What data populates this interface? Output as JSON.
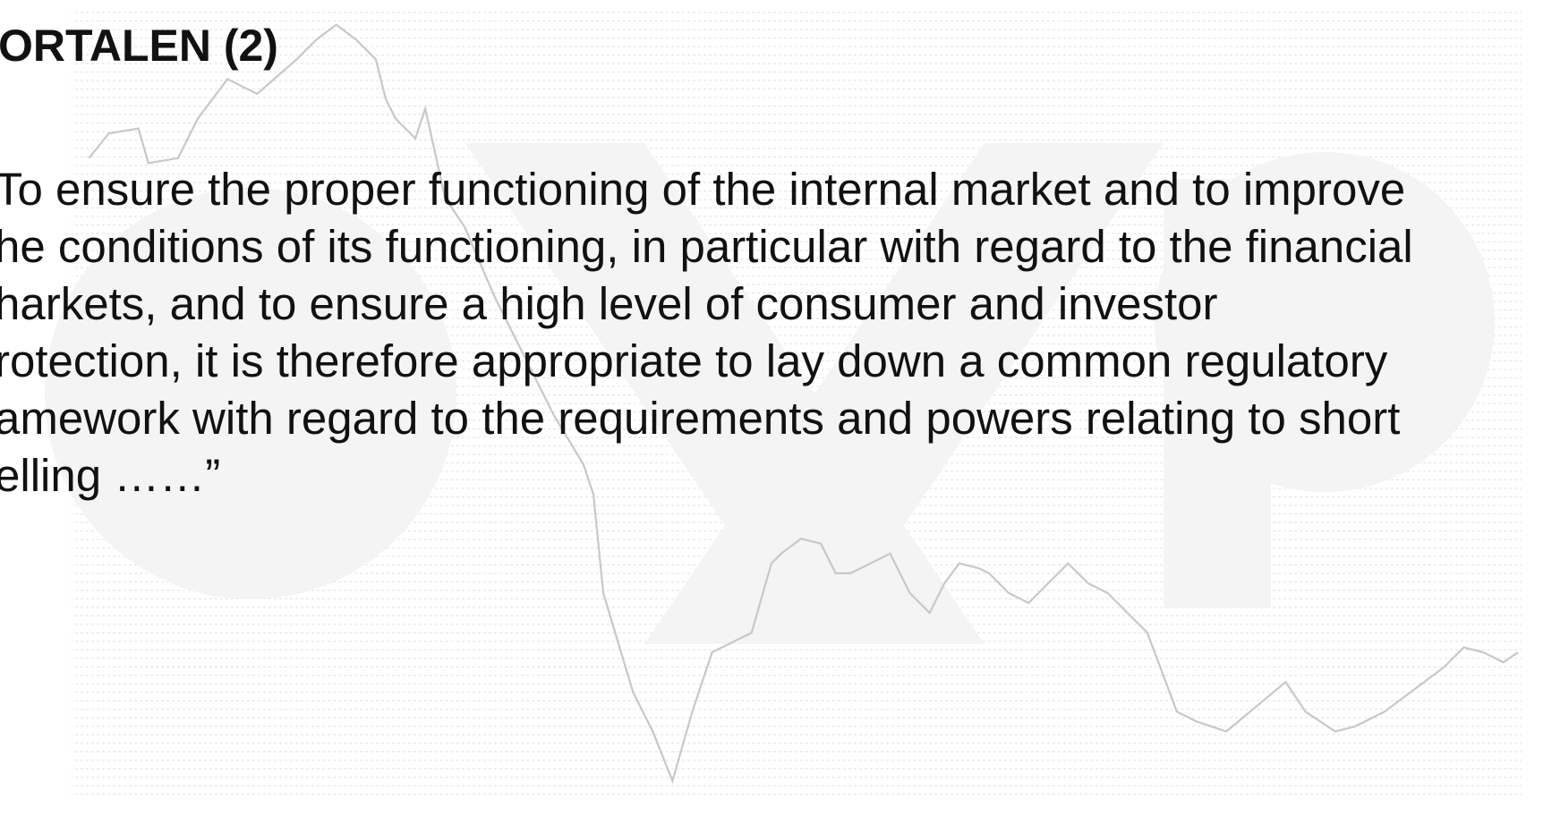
{
  "slide": {
    "title": "ORTALEN (2)",
    "body_lines": [
      "To ensure the proper functioning of the internal market and to improve",
      "he conditions of its functioning, in particular with regard to the financial",
      "harkets, and to ensure a high level of consumer and investor",
      "rotection, it is therefore appropriate to lay down a common regulatory",
      "amework with regard to the requirements and powers relating to short",
      "elling ……”"
    ]
  }
}
